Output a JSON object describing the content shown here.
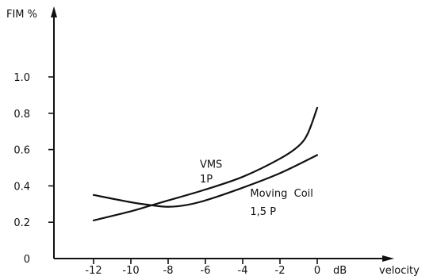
{
  "chart_data": {
    "type": "line",
    "ylabel": "FIM %",
    "xlabel": "velocity",
    "x_unit": "dB",
    "xlim": [
      -14,
      4
    ],
    "ylim": [
      0,
      1.2
    ],
    "x_ticks": [
      -12,
      -10,
      -8,
      -6,
      -4,
      -2,
      0
    ],
    "x_tick_labels": [
      "-12",
      "-10",
      "-8",
      "-6",
      "-4",
      "-2",
      "0"
    ],
    "y_ticks": [
      0,
      0.2,
      0.4,
      0.6,
      0.8,
      1.0
    ],
    "y_tick_labels": [
      "0",
      "0.2",
      "0.4",
      "0.6",
      "0.8",
      "1.0"
    ],
    "grid": false,
    "series": [
      {
        "name_lines": [
          "VMS",
          "1P"
        ],
        "points": [
          {
            "x": -12,
            "y": 0.21
          },
          {
            "x": -10,
            "y": 0.26
          },
          {
            "x": -9,
            "y": 0.29
          },
          {
            "x": -8,
            "y": 0.32
          },
          {
            "x": -6,
            "y": 0.38
          },
          {
            "x": -4,
            "y": 0.45
          },
          {
            "x": -2,
            "y": 0.55
          },
          {
            "x": -1,
            "y": 0.62
          },
          {
            "x": -0.5,
            "y": 0.69
          },
          {
            "x": 0,
            "y": 0.83
          }
        ]
      },
      {
        "name_lines": [
          "Moving  Coil",
          "1,5 P"
        ],
        "points": [
          {
            "x": -12,
            "y": 0.35
          },
          {
            "x": -10,
            "y": 0.31
          },
          {
            "x": -9,
            "y": 0.295
          },
          {
            "x": -8,
            "y": 0.285
          },
          {
            "x": -7,
            "y": 0.295
          },
          {
            "x": -6,
            "y": 0.32
          },
          {
            "x": -4,
            "y": 0.39
          },
          {
            "x": -2,
            "y": 0.47
          },
          {
            "x": 0,
            "y": 0.57
          }
        ]
      }
    ]
  }
}
